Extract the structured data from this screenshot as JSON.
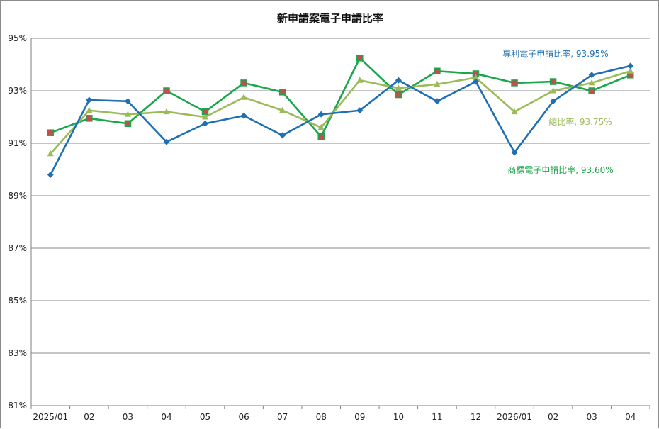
{
  "chart_data": {
    "type": "line",
    "title": "新申請案電子申請比率",
    "categories": [
      "2025/01",
      "02",
      "03",
      "04",
      "05",
      "06",
      "07",
      "08",
      "09",
      "10",
      "11",
      "12",
      "2026/01",
      "02",
      "03",
      "04"
    ],
    "ylim": [
      81,
      95
    ],
    "yticks": [
      81,
      83,
      85,
      87,
      89,
      91,
      93,
      95
    ],
    "ytick_labels": [
      "81%",
      "83%",
      "85%",
      "87%",
      "89%",
      "91%",
      "93%",
      "95%"
    ],
    "grid": true,
    "series": [
      {
        "key": "patent",
        "name": "專利電子申請比率",
        "color": "#1f6fb4",
        "marker": "diamond",
        "values": [
          89.8,
          92.65,
          92.6,
          91.05,
          91.75,
          92.05,
          91.3,
          92.1,
          92.25,
          93.4,
          92.6,
          93.35,
          90.65,
          92.6,
          93.6,
          93.95
        ],
        "annotation": "專利電子申請比率, 93.95%"
      },
      {
        "key": "total",
        "name": "總比率",
        "color": "#9bbb59",
        "marker": "triangle",
        "values": [
          90.6,
          92.25,
          92.1,
          92.2,
          92.0,
          92.75,
          92.25,
          91.6,
          93.4,
          93.1,
          93.25,
          93.5,
          92.2,
          93.0,
          93.3,
          93.75
        ],
        "annotation": "總比率, 93.75%"
      },
      {
        "key": "trademark",
        "name": "商標電子申請比率",
        "color": "#1aa64a",
        "marker": "square",
        "marker_fill": "#c0504d",
        "values": [
          91.4,
          91.95,
          91.75,
          93.0,
          92.2,
          93.3,
          92.95,
          91.25,
          94.25,
          92.85,
          93.75,
          93.65,
          93.3,
          93.35,
          93.0,
          93.6
        ],
        "annotation": "商標電子申請比率, 93.60%"
      }
    ]
  }
}
